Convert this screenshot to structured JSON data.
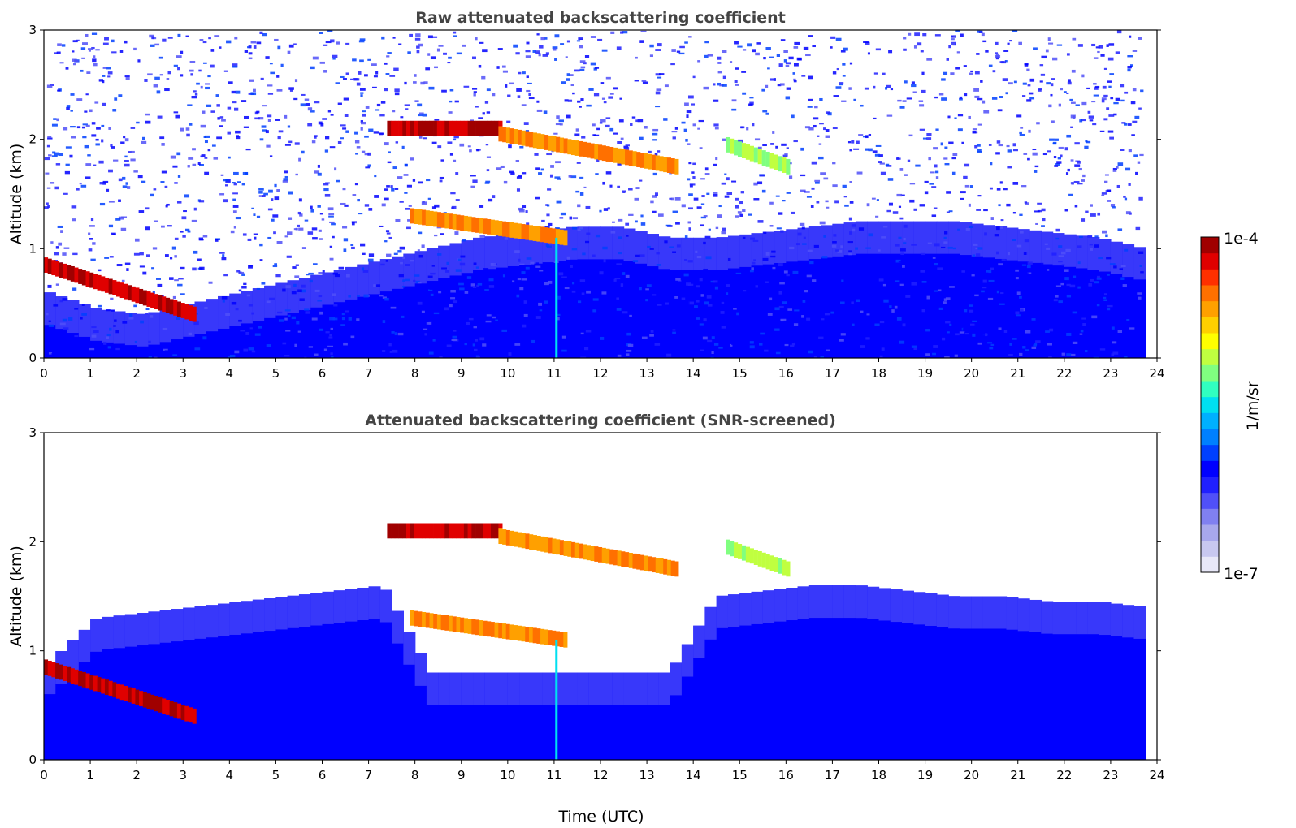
{
  "figure": {
    "colorbar": {
      "label": "1/m/sr",
      "max_label": "1e-4",
      "min_label": "1e-7",
      "colors": [
        "#e8e8f8",
        "#c8c8f0",
        "#a8a8ec",
        "#8080f0",
        "#5050f8",
        "#2020ff",
        "#0000ff",
        "#0040ff",
        "#0080ff",
        "#00b0ff",
        "#00e0f0",
        "#30ffc0",
        "#80ff80",
        "#c0ff40",
        "#ffff00",
        "#ffd000",
        "#ffa000",
        "#ff7000",
        "#ff3000",
        "#e00000",
        "#a00000"
      ]
    },
    "time_label": "Time (UTC)"
  },
  "chart_data": [
    {
      "type": "heatmap",
      "title": "Raw attenuated backscattering coefficient",
      "xlabel": "",
      "ylabel": "Altitude (km)",
      "xlim": [
        0,
        24
      ],
      "ylim": [
        0,
        3
      ],
      "x_ticks": [
        "0",
        "1",
        "2",
        "3",
        "4",
        "5",
        "6",
        "7",
        "8",
        "9",
        "10",
        "11",
        "12",
        "13",
        "14",
        "15",
        "16",
        "17",
        "18",
        "19",
        "20",
        "21",
        "22",
        "23",
        "24"
      ],
      "y_ticks": [
        "0",
        "1",
        "2",
        "3"
      ],
      "data_extent_hours": [
        0,
        23.65
      ],
      "noise": "high",
      "features": [
        {
          "kind": "boundary_layer",
          "time": [
            0,
            23.65
          ],
          "alt_top_km": [
            0.6,
            0.45,
            0.4,
            0.5,
            0.6,
            0.7,
            0.8,
            0.9,
            1.0,
            1.1,
            1.15,
            1.2,
            1.2,
            1.1,
            1.1,
            1.15,
            1.2,
            1.25,
            1.25,
            1.25,
            1.2,
            1.15,
            1.1,
            1.0
          ]
        },
        {
          "kind": "cloud_layer",
          "time": [
            0,
            3.2
          ],
          "alt_km": [
            0.85,
            0.4
          ],
          "strength": "high"
        },
        {
          "kind": "cloud_layer",
          "time": [
            7.4,
            9.8
          ],
          "alt_km": [
            2.1,
            2.1
          ],
          "strength": "high"
        },
        {
          "kind": "cloud_layer",
          "time": [
            9.8,
            13.6
          ],
          "alt_km": [
            2.05,
            1.75
          ],
          "strength": "medium"
        },
        {
          "kind": "cloud_layer",
          "time": [
            7.9,
            11.2
          ],
          "alt_km": [
            1.3,
            1.1
          ],
          "strength": "medium"
        },
        {
          "kind": "cloud_layer",
          "time": [
            14.7,
            16.0
          ],
          "alt_km": [
            1.95,
            1.75
          ],
          "strength": "low"
        },
        {
          "kind": "vertical_spike",
          "time": 11.05,
          "alt_km": [
            0,
            1.1
          ]
        }
      ]
    },
    {
      "type": "heatmap",
      "title": "Attenuated backscattering coefficient (SNR-screened)",
      "xlabel": "Time (UTC)",
      "ylabel": "Altitude (km)",
      "xlim": [
        0,
        24
      ],
      "ylim": [
        0,
        3
      ],
      "x_ticks": [
        "0",
        "1",
        "2",
        "3",
        "4",
        "5",
        "6",
        "7",
        "8",
        "9",
        "10",
        "11",
        "12",
        "13",
        "14",
        "15",
        "16",
        "17",
        "18",
        "19",
        "20",
        "21",
        "22",
        "23",
        "24"
      ],
      "y_ticks": [
        "0",
        "1",
        "2",
        "3"
      ],
      "data_extent_hours": [
        0,
        23.65
      ],
      "noise": "screened",
      "features": [
        {
          "kind": "boundary_layer",
          "time": [
            0,
            23.65
          ],
          "alt_top_km": [
            0.9,
            1.3,
            1.35,
            1.4,
            1.45,
            1.5,
            1.55,
            1.6,
            0.8,
            0.8,
            0.8,
            0.8,
            0.8,
            0.8,
            1.5,
            1.55,
            1.6,
            1.6,
            1.55,
            1.5,
            1.5,
            1.45,
            1.45,
            1.4
          ]
        },
        {
          "kind": "cloud_layer",
          "time": [
            0,
            3.2
          ],
          "alt_km": [
            0.85,
            0.4
          ],
          "strength": "high"
        },
        {
          "kind": "cloud_layer",
          "time": [
            7.4,
            9.8
          ],
          "alt_km": [
            2.1,
            2.1
          ],
          "strength": "high"
        },
        {
          "kind": "cloud_layer",
          "time": [
            9.8,
            13.6
          ],
          "alt_km": [
            2.05,
            1.75
          ],
          "strength": "medium"
        },
        {
          "kind": "cloud_layer",
          "time": [
            7.9,
            11.2
          ],
          "alt_km": [
            1.3,
            1.1
          ],
          "strength": "medium"
        },
        {
          "kind": "cloud_layer",
          "time": [
            14.7,
            16.0
          ],
          "alt_km": [
            1.95,
            1.75
          ],
          "strength": "low"
        },
        {
          "kind": "vertical_spike",
          "time": 11.05,
          "alt_km": [
            0,
            1.1
          ]
        }
      ]
    }
  ]
}
